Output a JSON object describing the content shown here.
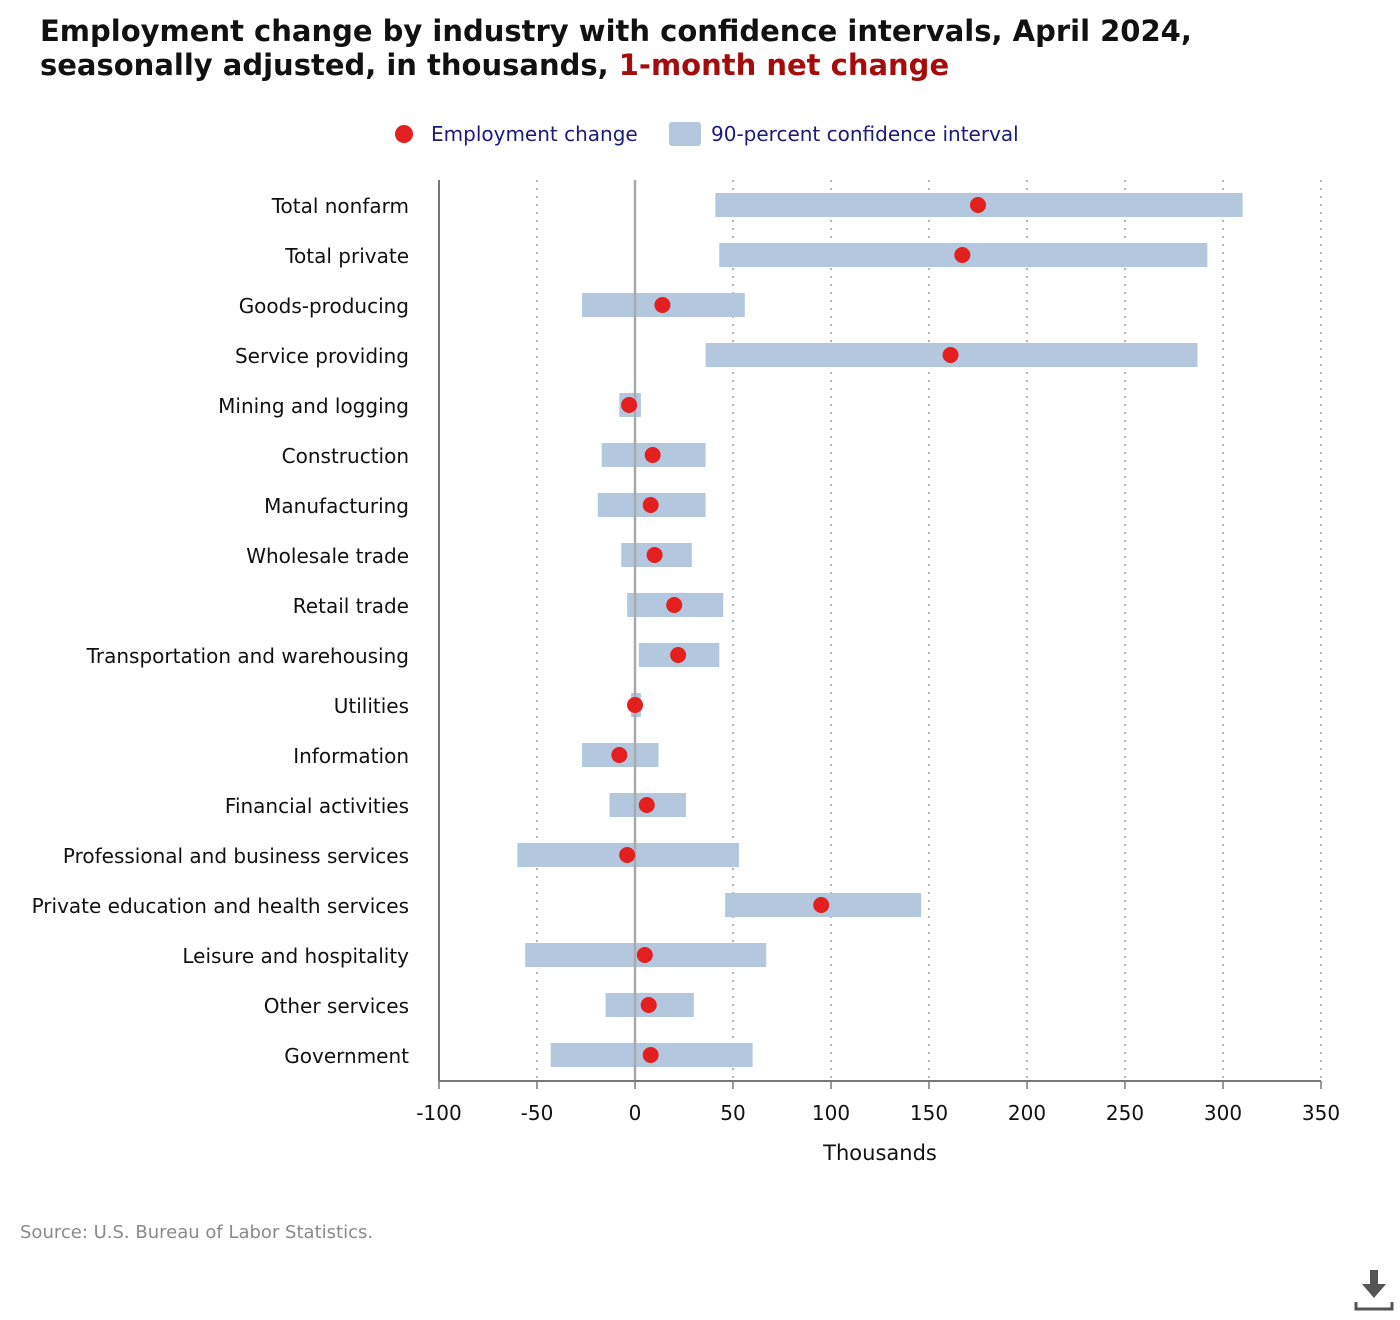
{
  "title": {
    "main": "Employment change by industry with confidence intervals, April 2024, seasonally adjusted, in thousands,",
    "highlight": "1-month net change"
  },
  "legend": {
    "point_label": "Employment change",
    "interval_label": "90-percent confidence interval"
  },
  "colors": {
    "point": "#e41f1f",
    "interval": "#b3c7de",
    "highlight": "#a50d0d",
    "legend_text": "#1b1b7a"
  },
  "source": "Source: U.S. Bureau of Labor Statistics.",
  "download_icon": "download-icon",
  "chart_data": {
    "type": "scatter",
    "orientation": "horizontal",
    "xlabel": "Thousands",
    "xlim": [
      -100,
      350
    ],
    "xticks": [
      -100,
      -50,
      0,
      50,
      100,
      150,
      200,
      250,
      300,
      350
    ],
    "grid": "vertical dotted",
    "legend_position": "top-center",
    "series": [
      {
        "name": "Employment change",
        "kind": "point"
      },
      {
        "name": "90-percent confidence interval",
        "kind": "interval"
      }
    ],
    "categories": [
      "Total nonfarm",
      "Total private",
      "Goods-producing",
      "Service providing",
      "Mining and logging",
      "Construction",
      "Manufacturing",
      "Wholesale trade",
      "Retail trade",
      "Transportation and warehousing",
      "Utilities",
      "Information",
      "Financial activities",
      "Professional and business services",
      "Private education and health services",
      "Leisure and hospitality",
      "Other services",
      "Government"
    ],
    "values": [
      175,
      167,
      14,
      161,
      -3,
      9,
      8,
      10,
      20,
      22,
      0,
      -8,
      6,
      -4,
      95,
      5,
      7,
      8
    ],
    "ci_low": [
      41,
      43,
      -27,
      36,
      -8,
      -17,
      -19,
      -7,
      -4,
      2,
      -2,
      -27,
      -13,
      -60,
      46,
      -56,
      -15,
      -43
    ],
    "ci_high": [
      310,
      292,
      56,
      287,
      3,
      36,
      36,
      29,
      45,
      43,
      3,
      12,
      26,
      53,
      146,
      67,
      30,
      60
    ]
  }
}
